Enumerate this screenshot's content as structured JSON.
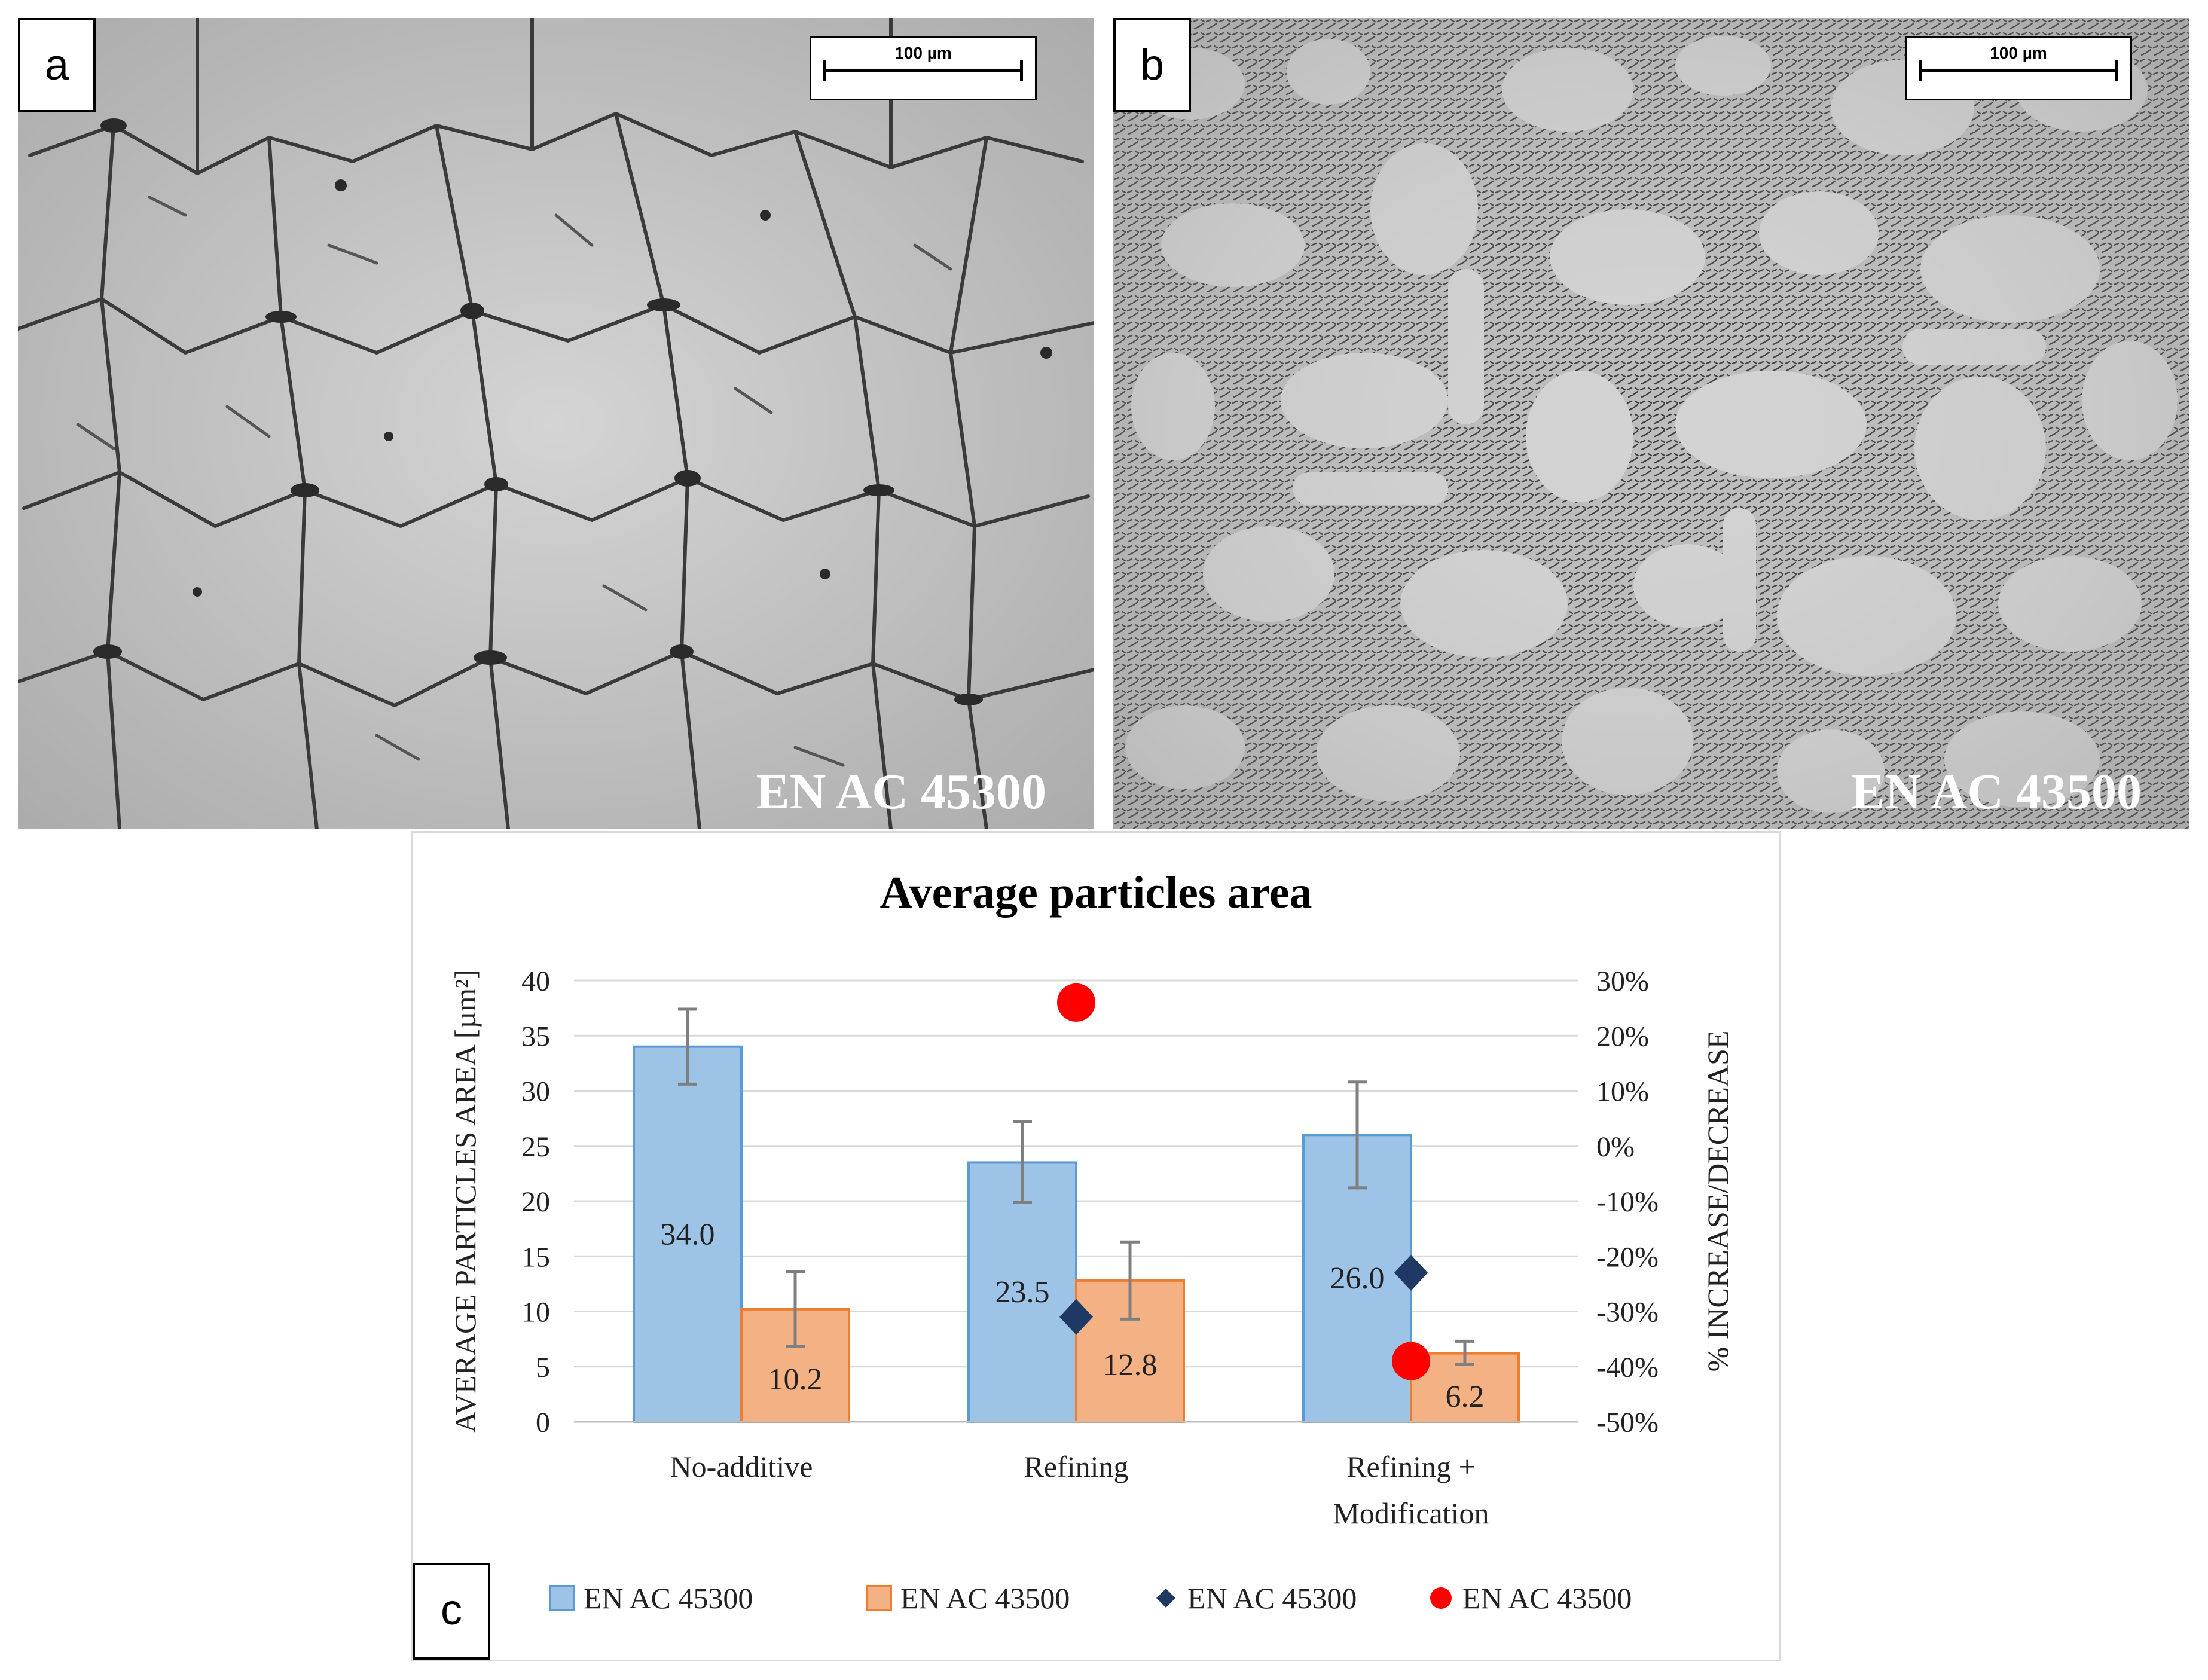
{
  "panels": {
    "a": {
      "letter": "a",
      "scale_label": "100 µm",
      "alloy": "EN AC 45300"
    },
    "b": {
      "letter": "b",
      "scale_label": "100 µm",
      "alloy": "EN AC 43500"
    },
    "c": {
      "letter": "c"
    }
  },
  "chart_data": {
    "type": "bar",
    "title": "Average particles area",
    "ylabel": "AVERAGE PARTICLES AREA [µm²]",
    "y2label": "% INCREASE/DECREASE",
    "categories": [
      [
        "No-additive"
      ],
      [
        "Refining"
      ],
      [
        "Refining +",
        "Modification"
      ]
    ],
    "ylim": [
      0,
      40
    ],
    "yticks": [
      0,
      5,
      10,
      15,
      20,
      25,
      30,
      35,
      40
    ],
    "y2lim": [
      -50,
      30
    ],
    "y2ticks": [
      -50,
      -40,
      -30,
      -20,
      -10,
      0,
      10,
      20,
      30
    ],
    "y2tick_labels": [
      "-50%",
      "-40%",
      "-30%",
      "-20%",
      "-10%",
      "0%",
      "10%",
      "20%",
      "30%"
    ],
    "grid": true,
    "legend": "bottom",
    "series": [
      {
        "name": "EN AC 45300",
        "kind": "bar",
        "axis": "left",
        "color": "#9dc3e6",
        "edge": "#5b9bd5",
        "values": [
          34.0,
          23.5,
          26.0
        ],
        "labels": [
          "34.0",
          "23.5",
          "26.0"
        ],
        "err_low": [
          30.6,
          19.9,
          21.2
        ],
        "err_high": [
          37.4,
          27.2,
          30.8
        ]
      },
      {
        "name": "EN AC 43500",
        "kind": "bar",
        "axis": "left",
        "color": "#f4b183",
        "edge": "#ed7d31",
        "values": [
          10.2,
          12.8,
          6.2
        ],
        "labels": [
          "10.2",
          "12.8",
          "6.2"
        ],
        "err_low": [
          6.8,
          9.3,
          5.2
        ],
        "err_high": [
          13.6,
          16.3,
          7.3
        ]
      },
      {
        "name": "EN AC 45300",
        "kind": "marker",
        "marker": "diamond",
        "axis": "right",
        "color": "#1f3864",
        "values": [
          null,
          -31,
          -23
        ]
      },
      {
        "name": "EN AC 43500",
        "kind": "marker",
        "marker": "circle",
        "axis": "right",
        "color": "#ff0000",
        "values": [
          null,
          26,
          -39
        ]
      }
    ]
  }
}
